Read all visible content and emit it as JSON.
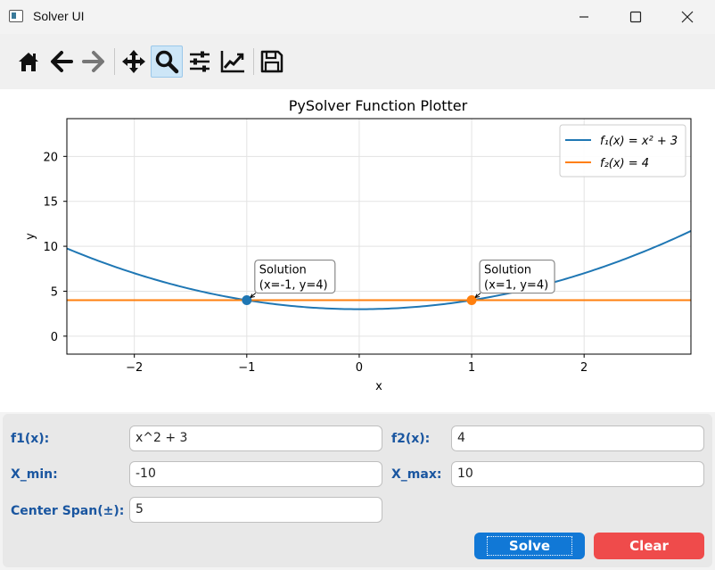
{
  "window": {
    "title": "Solver UI"
  },
  "toolbar": {
    "buttons": [
      {
        "name": "home-button",
        "icon": "home-icon"
      },
      {
        "name": "back-button",
        "icon": "arrow-left-icon"
      },
      {
        "name": "forward-button",
        "icon": "arrow-right-icon"
      },
      {
        "name": "pan-button",
        "icon": "move-icon"
      },
      {
        "name": "zoom-button",
        "icon": "magnifier-icon",
        "active": true
      },
      {
        "name": "configure-subplots-button",
        "icon": "sliders-icon"
      },
      {
        "name": "edit-axis-button",
        "icon": "line-chart-icon"
      },
      {
        "name": "save-figure-button",
        "icon": "floppy-disk-icon"
      }
    ]
  },
  "chart_data": {
    "type": "line",
    "title": "PySolver Function Plotter",
    "xlabel": "x",
    "ylabel": "y",
    "xlim": [
      -2.6,
      2.95
    ],
    "ylim": [
      -2,
      24.2
    ],
    "xticks": [
      "−2",
      "−1",
      "0",
      "1",
      "2"
    ],
    "xtick_values": [
      -2,
      -1,
      0,
      1,
      2
    ],
    "yticks": [
      "0",
      "5",
      "10",
      "15",
      "20"
    ],
    "ytick_values": [
      0,
      5,
      10,
      15,
      20
    ],
    "grid": true,
    "legend_position": "top-right",
    "series": [
      {
        "name": "f1",
        "legend_label": "f₁(x) = x² + 3",
        "expression": "x^2 + 3",
        "color": "#1f77b4"
      },
      {
        "name": "f2",
        "legend_label": "f₂(x) = 4",
        "expression": "4",
        "color": "#ff7f0e"
      }
    ],
    "solutions": [
      {
        "x": -1,
        "y": 4,
        "label_line1": "Solution",
        "label_line2": "(x=-1, y=4)"
      },
      {
        "x": 1,
        "y": 4,
        "label_line1": "Solution",
        "label_line2": "(x=1, y=4)"
      }
    ]
  },
  "form": {
    "f1_label": "f1(x):",
    "f1_value": "x^2 + 3",
    "f2_label": "f2(x):",
    "f2_value": "4",
    "xmin_label": "X_min:",
    "xmin_value": "-10",
    "xmax_label": "X_max:",
    "xmax_value": "10",
    "span_label": "Center Span(±):",
    "span_value": "5",
    "solve_label": "Solve",
    "clear_label": "Clear"
  },
  "colors": {
    "solve": "#1178d6",
    "clear": "#ef4b4b",
    "label": "#1a56a0"
  }
}
